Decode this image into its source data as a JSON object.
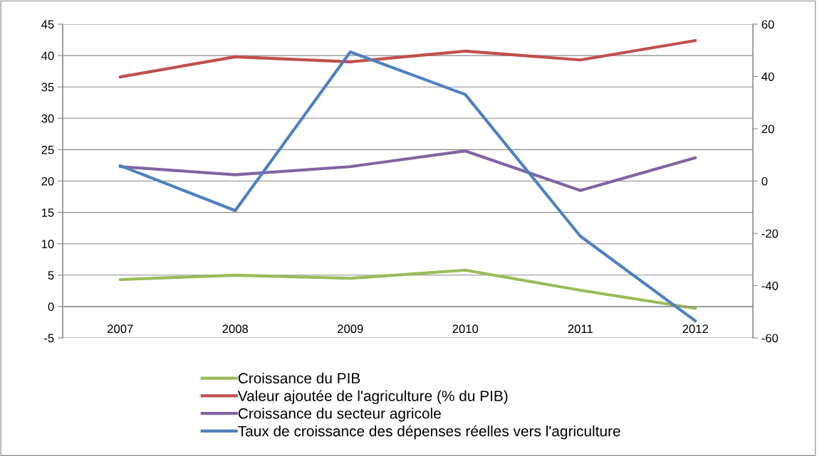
{
  "chart_data": {
    "type": "line",
    "categories": [
      "2007",
      "2008",
      "2009",
      "2010",
      "2011",
      "2012"
    ],
    "series": [
      {
        "name": "Croissance du PIB",
        "color": "#9bbb59",
        "values": [
          4.3,
          5.0,
          4.5,
          5.8,
          2.6,
          -0.3
        ]
      },
      {
        "name": "Valeur ajoutée de l'agriculture (% du PIB)",
        "color": "#c0504d",
        "values": [
          36.6,
          39.8,
          39.0,
          40.7,
          39.3,
          42.4
        ]
      },
      {
        "name": "Croissance du secteur agricole",
        "color": "#8064a2",
        "values": [
          22.3,
          21.0,
          22.3,
          24.8,
          18.5,
          23.7
        ]
      },
      {
        "name": "Taux de croissance des dépenses réelles vers l'agriculture",
        "color": "#4f81bd",
        "axis": "y2",
        "values": [
          5.9,
          -11.3,
          49.4,
          33.1,
          -21.1,
          -53.5
        ]
      }
    ],
    "ylim": [
      -5,
      45
    ],
    "yticks": [
      -5,
      0,
      5,
      10,
      15,
      20,
      25,
      30,
      35,
      40,
      45
    ],
    "y2lim": [
      -60,
      60
    ],
    "y2ticks": [
      -60,
      -40,
      -20,
      0,
      20,
      40,
      60
    ],
    "grid": "y",
    "legend": "bottom",
    "marker": "none",
    "line_style": "solid"
  }
}
